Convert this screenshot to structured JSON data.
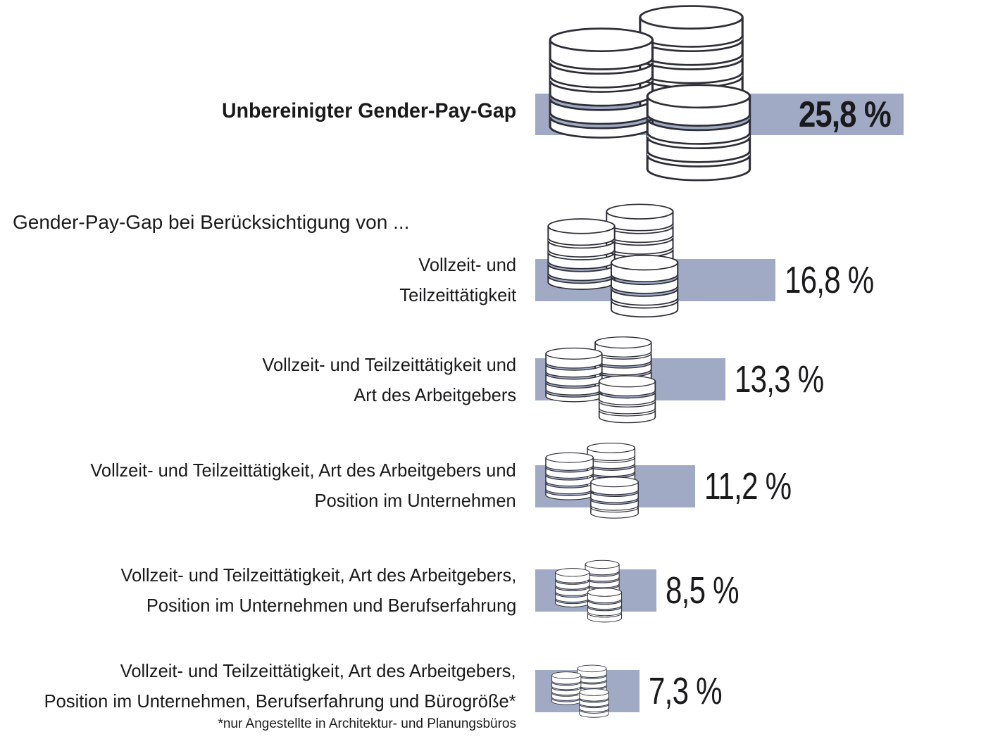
{
  "header": {
    "section_label": "Gender-Pay-Gap bei Berücksichtigung von ...",
    "footnote": "*nur Angestellte in Architektur- und Planungsbüros"
  },
  "colors": {
    "bar_fill": "#a0aac4",
    "coin_outline": "#2e2e36",
    "coin_fill": "#ffffff",
    "text": "#1a1a1c"
  },
  "chart_data": {
    "type": "bar",
    "orientation": "horizontal",
    "unit": "%",
    "number_format": "German decimal comma",
    "xlim": [
      0,
      25.8
    ],
    "grid": false,
    "legend": false,
    "rows": [
      {
        "label_lines": [
          "Unbereinigter Gender-Pay-Gap"
        ],
        "value": 25.8,
        "display_value": "25,8 %",
        "emphasized": true,
        "value_position": "inside-bar"
      },
      {
        "label_lines": [
          "Vollzeit- und",
          "Teilzeittätigkeit"
        ],
        "value": 16.8,
        "display_value": "16,8 %",
        "value_position": "right-of-bar"
      },
      {
        "label_lines": [
          "Vollzeit- und Teilzeittätigkeit und",
          "Art des Arbeitgebers"
        ],
        "value": 13.3,
        "display_value": "13,3 %",
        "value_position": "right-of-bar"
      },
      {
        "label_lines": [
          "Vollzeit- und Teilzeittätigkeit, Art des Arbeitgebers und",
          "Position im Unternehmen"
        ],
        "value": 11.2,
        "display_value": "11,2 %",
        "value_position": "right-of-bar"
      },
      {
        "label_lines": [
          "Vollzeit- und Teilzeittätigkeit, Art des Arbeitgebers,",
          "Position im Unternehmen und Berufserfahrung"
        ],
        "value": 8.5,
        "display_value": "8,5 %",
        "value_position": "right-of-bar"
      },
      {
        "label_lines": [
          "Vollzeit- und Teilzeittätigkeit, Art des Arbeitgebers,",
          "Position im Unternehmen, Berufserfahrung und Bürogröße*"
        ],
        "value": 7.3,
        "display_value": "7,3 %",
        "value_position": "right-of-bar"
      }
    ]
  }
}
